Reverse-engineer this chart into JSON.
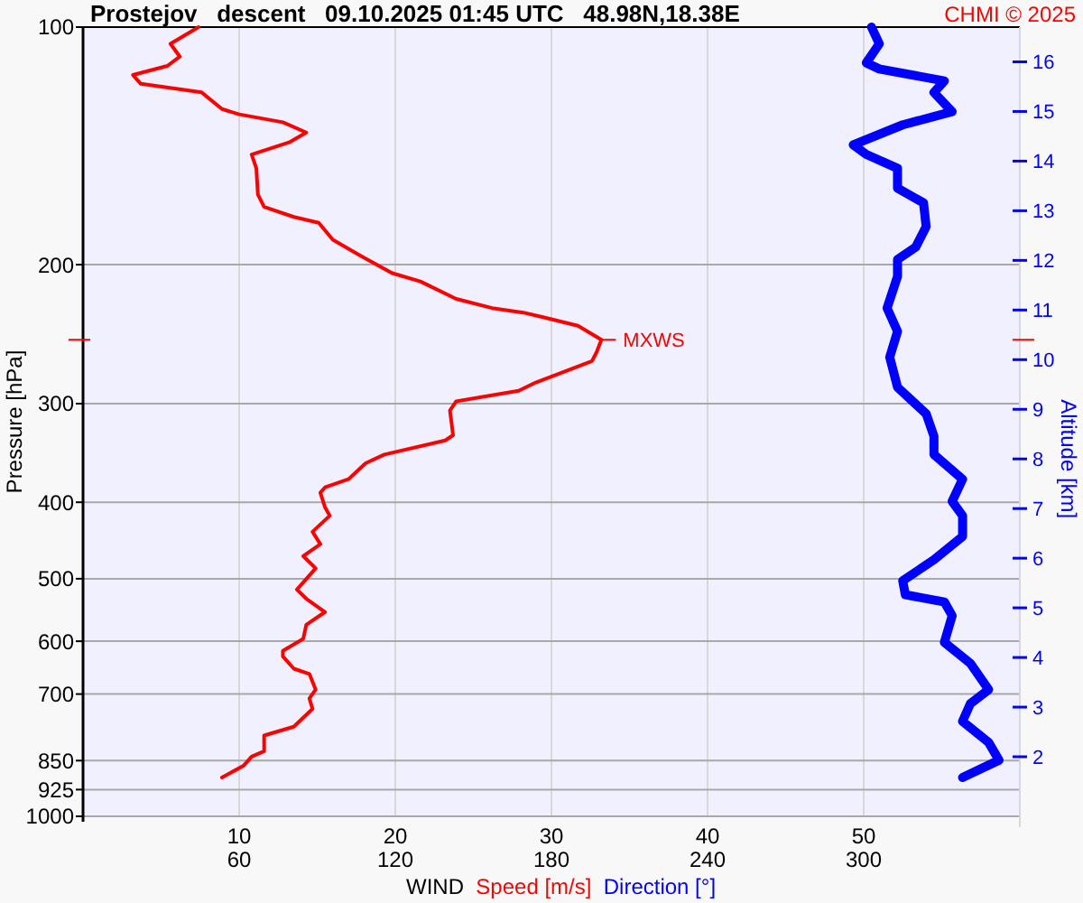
{
  "chart_data": {
    "type": "line",
    "title": "Prostejov   descent   09.10.2025 01:45 UTC   48.98N,18.38E",
    "xlabel": "WIND",
    "ylabel": "Pressure [hPa]",
    "y2label": "Altitude [km]",
    "annotations": [
      "CHMI © 2025",
      {
        "text": "MXWS",
        "x": 33.2,
        "y": 249
      }
    ],
    "log": "y",
    "grid": true,
    "legend": "bottom",
    "orientation": "horizontal",
    "xlim": [
      0,
      60
    ],
    "xticks": [
      10,
      20,
      30,
      40,
      50
    ],
    "x2lim": [
      0,
      360
    ],
    "x2ticks": [
      60,
      120,
      180,
      240,
      300
    ],
    "ylim": [
      1000,
      100
    ],
    "yticks": [
      100,
      200,
      300,
      400,
      500,
      600,
      700,
      850,
      925,
      1000
    ],
    "y2lim": [
      0.8,
      16.7
    ],
    "y2ticks": [
      2,
      3,
      4,
      5,
      6,
      7,
      8,
      9,
      10,
      11,
      12,
      13,
      14,
      15,
      16
    ],
    "series": [
      {
        "name": "Speed [m/s]",
        "color": "#ff0000",
        "values": [
          7.4,
          5.6,
          6.2,
          5.4,
          3.2,
          3.7,
          7.6,
          8.9,
          10.0,
          12.8,
          14.3,
          13.2,
          10.8,
          11.1,
          11.2,
          11.6,
          13.5,
          15.1,
          16.0,
          17.8,
          19.8,
          21.6,
          23.9,
          26.2,
          28.2,
          29.4,
          31.7,
          33.2,
          32.9,
          32.6,
          29.0,
          27.9,
          23.9,
          23.5,
          23.6,
          23.7,
          23.2,
          19.3,
          18.1,
          17.0,
          15.5,
          15.2,
          15.5,
          15.8,
          14.7,
          15.2,
          14.1,
          14.9,
          13.7,
          14.3,
          15.5,
          14.3,
          14.1,
          12.8,
          12.8,
          13.5,
          14.5,
          14.9,
          14.5,
          14.7,
          13.5,
          11.6,
          11.6,
          10.8,
          10.3,
          8.9
        ],
        "x": [
          100,
          105,
          109,
          112,
          115,
          118,
          121,
          127,
          129,
          132,
          136,
          140,
          145,
          151,
          163,
          169,
          174,
          177,
          186,
          195,
          205,
          210,
          221,
          227,
          230,
          233,
          239,
          249,
          258,
          265,
          282,
          289,
          298,
          306,
          317,
          329,
          334,
          348,
          357,
          374,
          383,
          389,
          406,
          416,
          436,
          452,
          468,
          485,
          516,
          530,
          551,
          572,
          596,
          617,
          627,
          650,
          660,
          691,
          709,
          731,
          770,
          790,
          827,
          840,
          862,
          893
        ]
      },
      {
        "name": "Direction [°]",
        "color": "#0000ff",
        "axis": "x2",
        "values": [
          303,
          306,
          301,
          306,
          331,
          327,
          334,
          315,
          296,
          301,
          313,
          313,
          323,
          324,
          320,
          313,
          313,
          309,
          313,
          310,
          313,
          324,
          327,
          327,
          338,
          334,
          338,
          338,
          327,
          315,
          316,
          331,
          334,
          331,
          341,
          348,
          341,
          338,
          348,
          352,
          338
        ],
        "x": [
          100,
          105,
          111,
          113,
          117,
          121,
          128,
          133,
          141,
          145,
          151,
          160,
          167,
          179,
          190,
          197,
          207,
          227,
          243,
          262,
          286,
          309,
          330,
          348,
          374,
          399,
          416,
          442,
          473,
          503,
          524,
          535,
          557,
          602,
          640,
          691,
          720,
          758,
          806,
          849,
          893
        ]
      }
    ]
  }
}
